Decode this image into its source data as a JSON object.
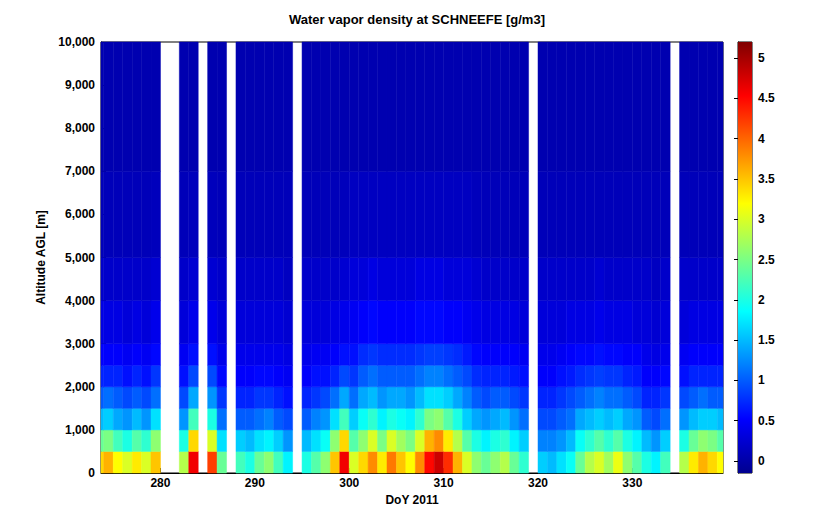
{
  "chart_data": {
    "type": "heatmap",
    "title": "Water vapor density at SCHNEEFE [g/m3]",
    "xlabel": "DoY 2011",
    "ylabel": "Altitude AGL [m]",
    "xlim": [
      273.7,
      339.6
    ],
    "xticks": [
      280,
      290,
      300,
      310,
      320,
      330
    ],
    "ylim": [
      0,
      10000
    ],
    "yticks": [
      0,
      1000,
      2000,
      3000,
      4000,
      5000,
      6000,
      7000,
      8000,
      9000,
      10000
    ],
    "x": [
      273,
      274,
      275,
      276,
      277,
      278,
      279,
      280,
      281,
      282,
      283,
      284,
      285,
      286,
      287,
      288,
      289,
      290,
      291,
      292,
      293,
      294,
      295,
      296,
      297,
      298,
      299,
      300,
      301,
      302,
      303,
      304,
      305,
      306,
      307,
      308,
      309,
      310,
      311,
      312,
      313,
      314,
      315,
      316,
      317,
      318,
      319,
      320,
      321,
      322,
      323,
      324,
      325,
      326,
      327,
      328,
      329,
      330,
      331,
      332,
      333,
      334,
      335,
      336,
      337,
      338,
      339
    ],
    "y_bins": [
      0,
      500,
      1000,
      1500,
      2000,
      2500,
      3000,
      4000,
      5000,
      7000,
      10000
    ],
    "values": [
      [
        3.4,
        2.4,
        1.5,
        1.0,
        0.7,
        0.5,
        0.35,
        0.2,
        0.1,
        0.05
      ],
      [
        3.6,
        2.5,
        1.6,
        1.1,
        0.7,
        0.5,
        0.35,
        0.2,
        0.1,
        0.05
      ],
      [
        3.2,
        2.2,
        1.4,
        1.0,
        0.7,
        0.5,
        0.35,
        0.2,
        0.1,
        0.05
      ],
      [
        3.0,
        2.0,
        1.3,
        0.9,
        0.6,
        0.45,
        0.3,
        0.2,
        0.1,
        0.05
      ],
      [
        3.3,
        2.3,
        1.5,
        1.0,
        0.7,
        0.5,
        0.35,
        0.2,
        0.1,
        0.05
      ],
      [
        3.0,
        2.1,
        1.3,
        0.9,
        0.6,
        0.45,
        0.3,
        0.2,
        0.1,
        0.05
      ],
      [
        3.5,
        2.6,
        1.7,
        1.1,
        0.8,
        0.55,
        0.4,
        0.25,
        0.12,
        0.05
      ],
      null,
      null,
      [
        2.8,
        2.0,
        1.3,
        0.9,
        0.6,
        0.45,
        0.3,
        0.2,
        0.1,
        0.05
      ],
      [
        4.6,
        3.4,
        2.2,
        1.4,
        0.9,
        0.6,
        0.4,
        0.25,
        0.12,
        0.05
      ],
      null,
      [
        4.2,
        3.0,
        2.0,
        1.3,
        0.9,
        0.6,
        0.4,
        0.25,
        0.12,
        0.05
      ],
      [
        2.4,
        1.7,
        1.1,
        0.8,
        0.55,
        0.4,
        0.3,
        0.2,
        0.1,
        0.05
      ],
      null,
      [
        2.2,
        1.6,
        1.0,
        0.7,
        0.5,
        0.4,
        0.3,
        0.2,
        0.1,
        0.05
      ],
      [
        2.0,
        1.5,
        1.0,
        0.7,
        0.5,
        0.4,
        0.3,
        0.2,
        0.1,
        0.05
      ],
      [
        2.4,
        1.7,
        1.1,
        0.8,
        0.55,
        0.4,
        0.3,
        0.2,
        0.1,
        0.05
      ],
      [
        2.6,
        1.8,
        1.2,
        0.8,
        0.55,
        0.4,
        0.3,
        0.2,
        0.1,
        0.05
      ],
      [
        2.2,
        1.6,
        1.0,
        0.7,
        0.5,
        0.4,
        0.3,
        0.2,
        0.1,
        0.05
      ],
      [
        1.8,
        1.3,
        0.9,
        0.6,
        0.45,
        0.35,
        0.25,
        0.15,
        0.1,
        0.05
      ],
      null,
      [
        2.0,
        1.5,
        1.0,
        0.7,
        0.5,
        0.4,
        0.3,
        0.2,
        0.1,
        0.05
      ],
      [
        2.3,
        1.7,
        1.2,
        0.8,
        0.6,
        0.45,
        0.3,
        0.2,
        0.1,
        0.05
      ],
      [
        2.6,
        1.9,
        1.3,
        0.9,
        0.6,
        0.45,
        0.3,
        0.2,
        0.1,
        0.05
      ],
      [
        3.5,
        2.6,
        1.7,
        1.1,
        0.7,
        0.5,
        0.35,
        0.2,
        0.1,
        0.05
      ],
      [
        4.6,
        3.4,
        2.2,
        1.4,
        0.9,
        0.6,
        0.4,
        0.25,
        0.12,
        0.05
      ],
      [
        3.0,
        2.3,
        1.6,
        1.1,
        0.8,
        0.6,
        0.45,
        0.3,
        0.15,
        0.05
      ],
      [
        3.4,
        2.6,
        1.9,
        1.4,
        1.0,
        0.75,
        0.5,
        0.3,
        0.15,
        0.05
      ],
      [
        3.8,
        3.0,
        2.1,
        1.5,
        1.1,
        0.8,
        0.55,
        0.35,
        0.15,
        0.05
      ],
      [
        3.3,
        2.5,
        1.8,
        1.3,
        1.0,
        0.75,
        0.5,
        0.3,
        0.15,
        0.05
      ],
      [
        3.9,
        3.0,
        2.0,
        1.4,
        1.0,
        0.75,
        0.5,
        0.3,
        0.15,
        0.05
      ],
      [
        3.5,
        2.7,
        1.9,
        1.4,
        1.0,
        0.75,
        0.5,
        0.3,
        0.15,
        0.05
      ],
      [
        3.2,
        2.5,
        1.8,
        1.3,
        1.0,
        0.75,
        0.5,
        0.3,
        0.15,
        0.05
      ],
      [
        3.8,
        3.0,
        2.1,
        1.5,
        1.1,
        0.8,
        0.55,
        0.35,
        0.15,
        0.05
      ],
      [
        4.5,
        3.6,
        2.5,
        1.7,
        1.2,
        0.85,
        0.55,
        0.35,
        0.15,
        0.05
      ],
      [
        4.8,
        3.8,
        2.6,
        1.7,
        1.2,
        0.85,
        0.55,
        0.35,
        0.15,
        0.05
      ],
      [
        4.3,
        3.3,
        2.3,
        1.6,
        1.1,
        0.8,
        0.5,
        0.3,
        0.15,
        0.05
      ],
      [
        3.6,
        2.8,
        2.0,
        1.4,
        1.0,
        0.75,
        0.5,
        0.3,
        0.15,
        0.05
      ],
      [
        3.0,
        2.3,
        1.6,
        1.2,
        0.9,
        0.65,
        0.45,
        0.3,
        0.15,
        0.05
      ],
      [
        2.6,
        2.0,
        1.4,
        1.0,
        0.75,
        0.55,
        0.4,
        0.25,
        0.12,
        0.05
      ],
      [
        2.4,
        1.8,
        1.3,
        0.9,
        0.7,
        0.5,
        0.35,
        0.2,
        0.1,
        0.05
      ],
      [
        2.6,
        2.0,
        1.4,
        1.0,
        0.7,
        0.5,
        0.35,
        0.2,
        0.1,
        0.05
      ],
      [
        2.8,
        2.1,
        1.5,
        1.0,
        0.7,
        0.5,
        0.35,
        0.2,
        0.1,
        0.05
      ],
      [
        2.4,
        1.8,
        1.3,
        0.9,
        0.65,
        0.5,
        0.35,
        0.2,
        0.1,
        0.05
      ],
      [
        2.1,
        1.6,
        1.1,
        0.8,
        0.6,
        0.45,
        0.3,
        0.2,
        0.1,
        0.05
      ],
      null,
      [
        1.6,
        1.2,
        0.9,
        0.7,
        0.5,
        0.4,
        0.3,
        0.2,
        0.1,
        0.05
      ],
      [
        1.5,
        1.2,
        0.9,
        0.7,
        0.5,
        0.4,
        0.3,
        0.2,
        0.1,
        0.05
      ],
      [
        1.7,
        1.3,
        1.0,
        0.8,
        0.6,
        0.45,
        0.3,
        0.2,
        0.1,
        0.05
      ],
      [
        1.9,
        1.5,
        1.1,
        0.9,
        0.65,
        0.5,
        0.35,
        0.2,
        0.1,
        0.05
      ],
      [
        2.4,
        1.9,
        1.4,
        1.0,
        0.75,
        0.55,
        0.35,
        0.2,
        0.1,
        0.05
      ],
      [
        2.8,
        2.1,
        1.5,
        1.1,
        0.8,
        0.55,
        0.35,
        0.2,
        0.1,
        0.05
      ],
      [
        3.0,
        2.3,
        1.6,
        1.2,
        0.85,
        0.6,
        0.4,
        0.25,
        0.1,
        0.05
      ],
      [
        2.7,
        2.1,
        1.5,
        1.1,
        0.8,
        0.55,
        0.35,
        0.2,
        0.1,
        0.05
      ],
      [
        3.1,
        2.3,
        1.6,
        1.1,
        0.8,
        0.55,
        0.35,
        0.2,
        0.1,
        0.05
      ],
      [
        2.6,
        2.0,
        1.4,
        1.0,
        0.7,
        0.5,
        0.35,
        0.2,
        0.1,
        0.05
      ],
      [
        2.3,
        1.8,
        1.3,
        0.9,
        0.65,
        0.5,
        0.3,
        0.2,
        0.1,
        0.05
      ],
      [
        2.0,
        1.5,
        1.0,
        0.7,
        0.5,
        0.4,
        0.3,
        0.2,
        0.1,
        0.05
      ],
      [
        1.8,
        1.3,
        0.9,
        0.7,
        0.5,
        0.35,
        0.25,
        0.15,
        0.1,
        0.05
      ],
      [
        2.2,
        1.6,
        1.1,
        0.8,
        0.55,
        0.4,
        0.3,
        0.2,
        0.1,
        0.05
      ],
      null,
      [
        2.8,
        2.0,
        1.3,
        0.9,
        0.6,
        0.45,
        0.3,
        0.2,
        0.1,
        0.05
      ],
      [
        3.3,
        2.4,
        1.5,
        1.0,
        0.7,
        0.5,
        0.35,
        0.2,
        0.1,
        0.05
      ],
      [
        3.6,
        2.6,
        1.6,
        1.1,
        0.7,
        0.5,
        0.35,
        0.2,
        0.1,
        0.05
      ],
      [
        3.4,
        2.5,
        1.6,
        1.0,
        0.7,
        0.5,
        0.35,
        0.2,
        0.1,
        0.05
      ],
      [
        3.2,
        2.3,
        1.5,
        1.0,
        0.7,
        0.5,
        0.35,
        0.2,
        0.1,
        0.05
      ]
    ],
    "color_range": [
      -0.15,
      5.2
    ],
    "color_ticks": [
      0,
      0.5,
      1,
      1.5,
      2,
      2.5,
      3,
      3.5,
      4,
      4.5,
      5
    ]
  }
}
